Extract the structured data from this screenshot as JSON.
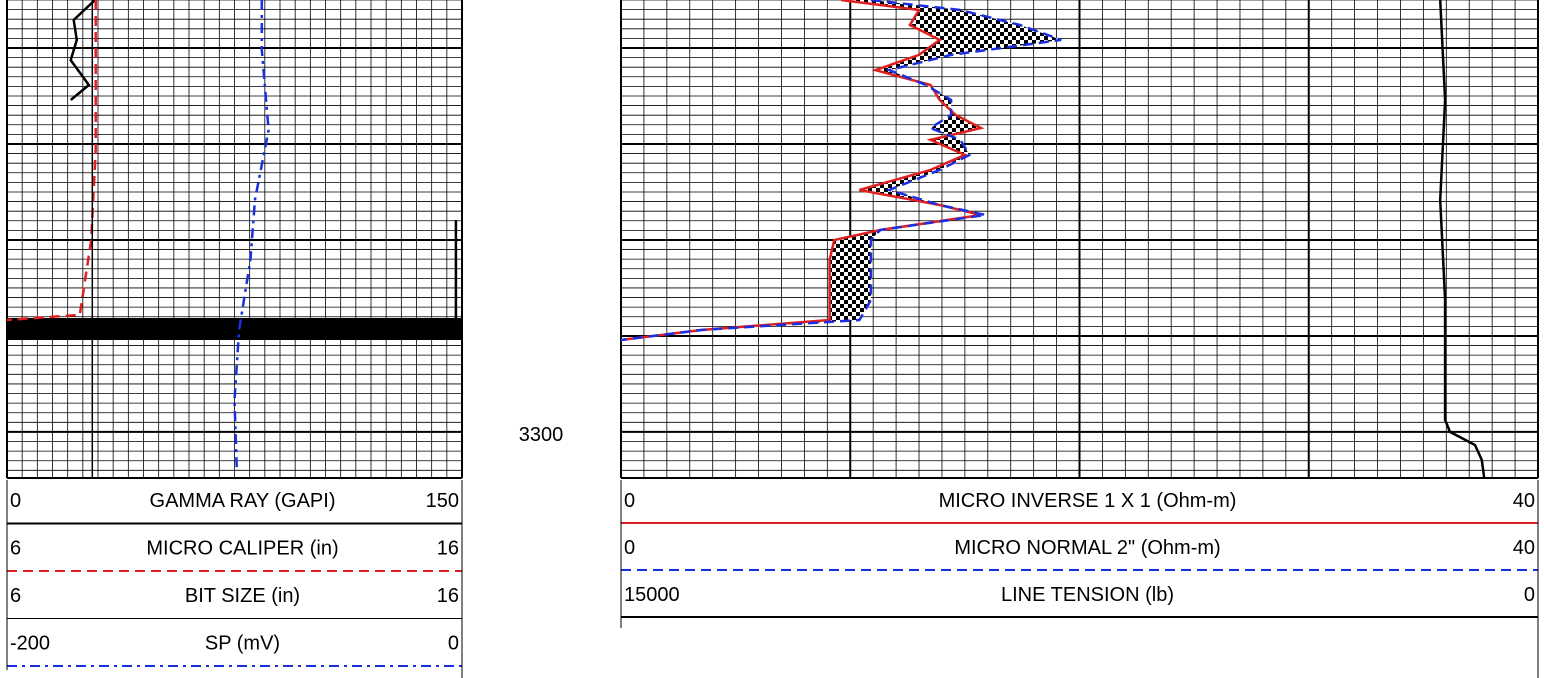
{
  "chart_data": {
    "type": "well_log",
    "ylim": [
      3075,
      3324
    ],
    "yticks": [
      3300
    ],
    "grid": {
      "minor_step": 5,
      "major_step": 50
    },
    "tracks": [
      {
        "xgrid": {
          "divisions": 30,
          "major_every": 30
        },
        "series": [
          {
            "name": "GAMMA RAY (GAPI)",
            "color": "#000000",
            "style": "solid",
            "scale": [
              0,
              150
            ],
            "depth": [
              3075,
              3085.4,
              3095.8,
              3106.3,
              3119.3,
              3127.1,
              3150,
              3189.6,
              3241.7
            ],
            "values": [
              29,
              22,
              23,
              21,
              27,
              21,
              null,
              148,
              148
            ]
          },
          {
            "name": "MICRO CALIPER (in)",
            "color": "#e02020",
            "style": "dashed",
            "scale": [
              6,
              16
            ],
            "depth": [
              3075,
              3153,
              3200,
              3239,
              3241.7
            ],
            "values": [
              7.95,
              7.95,
              7.85,
              7.6,
              6
            ]
          },
          {
            "name": "BIT SIZE (in)",
            "color": "#000000",
            "style": "thin",
            "scale": [
              6,
              16
            ],
            "depth": [
              3075,
              3324
            ],
            "values": [
              7.875,
              7.875
            ]
          },
          {
            "name": "SP (mV)",
            "color": "#1a2fe0",
            "style": "dashdot",
            "scale": [
              -200,
              0
            ],
            "depth": [
              3075,
              3101,
              3142.7,
              3179,
              3210.4,
              3246.9,
              3283.3,
              3319.8
            ],
            "values": [
              -88,
              -88,
              -85,
              -91,
              -93,
              -98,
              -100,
              -99
            ]
          }
        ]
      },
      {
        "xgrid": {
          "divisions": 40,
          "major_every": 10
        },
        "fill_between": true,
        "series": [
          {
            "name": "MICRO INVERSE 1 X 1 (Ohm-m)",
            "color": "#e02020",
            "style": "solid",
            "scale": [
              0,
              40
            ],
            "depth": [
              3075,
              3080.2,
              3088,
              3095.8,
              3103.6,
              3111.5,
              3119.3,
              3127.1,
              3134.9,
              3141.7,
              3147.9,
              3155.7,
              3163.5,
              3174,
              3181.8,
              3187,
              3194.8,
              3200,
              3210.4,
              3231.3,
              3241.7,
              3246.9,
              3252.1
            ],
            "values": [
              9.6,
              13,
              12.6,
              13.9,
              13,
              11.1,
              13.5,
              13.9,
              14.6,
              15.7,
              13.5,
              15,
              13.5,
              10.4,
              13.9,
              15.7,
              11.3,
              9.3,
              9.1,
              9.1,
              9.1,
              3.5,
              0
            ]
          },
          {
            "name": "MICRO NORMAL 2\" (Ohm-m)",
            "color": "#1a2fe0",
            "style": "dashed",
            "scale": [
              0,
              40
            ],
            "depth": [
              3075,
              3080.2,
              3088,
              3095.8,
              3103.6,
              3111.5,
              3119.3,
              3127.1,
              3134.9,
              3141.7,
              3147.9,
              3155.7,
              3163.5,
              3174,
              3181.8,
              3187,
              3194.8,
              3200,
              3210.4,
              3231.3,
              3241.7,
              3246.9,
              3252.1
            ],
            "values": [
              10.9,
              14.8,
              17.4,
              19.2,
              14.4,
              11.7,
              13.3,
              14.4,
              14.4,
              13.5,
              14.8,
              15.2,
              13.9,
              11.7,
              13.9,
              15.9,
              11.3,
              10.9,
              10.9,
              10.9,
              10.4,
              3.5,
              0
            ]
          },
          {
            "name": "LINE TENSION (lb)",
            "color": "#000000",
            "style": "solid",
            "scale": [
              15000,
              0
            ],
            "depth": [
              3075,
              3127.1,
              3179.2,
              3231.3,
              3293.8,
              3300,
              3306.8,
              3314.6,
              3324
            ],
            "values": [
              1600,
              1520,
              1600,
              1520,
              1520,
              1440,
              1030,
              920,
              880
            ]
          }
        ]
      }
    ]
  }
}
